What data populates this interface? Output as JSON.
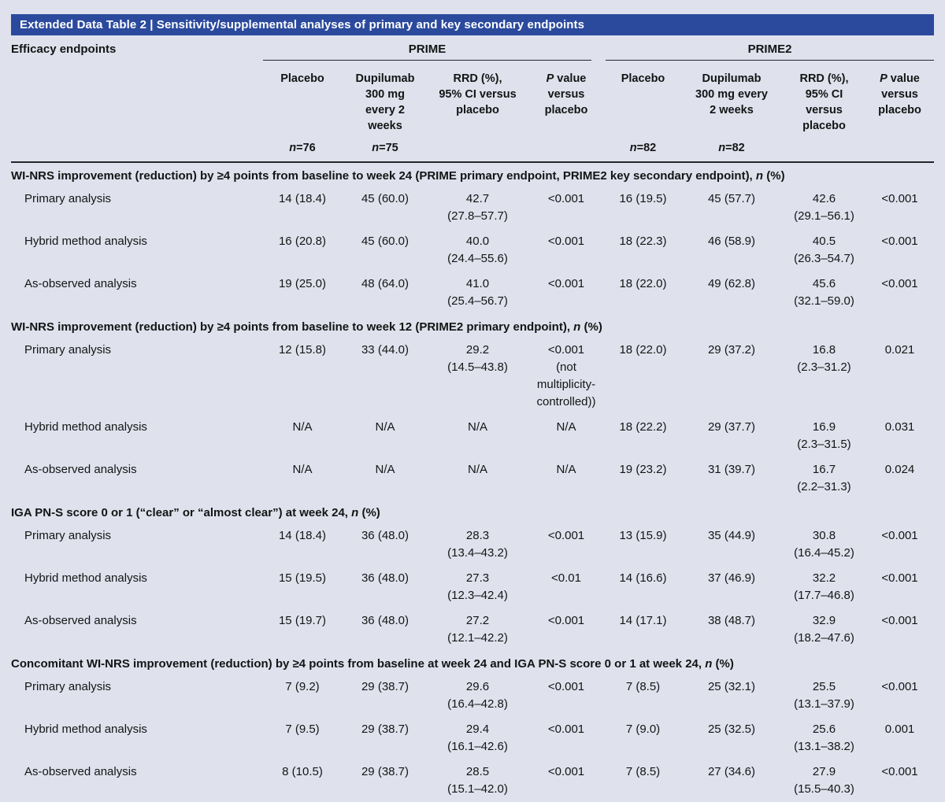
{
  "title": "Extended Data Table 2 | Sensitivity/supplemental analyses of primary and key secondary endpoints",
  "header": {
    "efficacy_label": "Efficacy endpoints",
    "groups": [
      {
        "name": "PRIME",
        "columns": [
          {
            "lines": [
              "Placebo"
            ],
            "n": "n=76"
          },
          {
            "lines": [
              "Dupilumab",
              "300 mg",
              "every 2",
              "weeks"
            ],
            "n": "n=75"
          },
          {
            "lines": [
              "RRD (%),",
              "95% CI versus",
              "placebo"
            ],
            "n": ""
          },
          {
            "lines": [
              "P value",
              "versus",
              "placebo"
            ],
            "n": ""
          }
        ]
      },
      {
        "name": "PRIME2",
        "columns": [
          {
            "lines": [
              "Placebo"
            ],
            "n": "n=82"
          },
          {
            "lines": [
              "Dupilumab",
              "300 mg every",
              "2 weeks"
            ],
            "n": "n=82"
          },
          {
            "lines": [
              "RRD (%),",
              "95% CI",
              "versus",
              "placebo"
            ],
            "n": ""
          },
          {
            "lines": [
              "P value",
              "versus",
              "placebo"
            ],
            "n": ""
          }
        ]
      }
    ]
  },
  "sections": [
    {
      "title": "WI-NRS improvement (reduction) by ≥4 points from baseline to week 24 (PRIME primary endpoint, PRIME2 key secondary endpoint), n (%)",
      "rows": [
        {
          "label": "Primary analysis",
          "cells": [
            "14 (18.4)",
            "45 (60.0)",
            [
              "42.7",
              "(27.8–57.7)"
            ],
            "<0.001",
            "16 (19.5)",
            "45 (57.7)",
            [
              "42.6",
              "(29.1–56.1)"
            ],
            "<0.001"
          ]
        },
        {
          "label": "Hybrid method analysis",
          "cells": [
            "16 (20.8)",
            "45 (60.0)",
            [
              "40.0",
              "(24.4–55.6)"
            ],
            "<0.001",
            "18 (22.3)",
            "46 (58.9)",
            [
              "40.5",
              "(26.3–54.7)"
            ],
            "<0.001"
          ]
        },
        {
          "label": "As-observed analysis",
          "cells": [
            "19 (25.0)",
            "48 (64.0)",
            [
              "41.0",
              "(25.4–56.7)"
            ],
            "<0.001",
            "18 (22.0)",
            "49 (62.8)",
            [
              "45.6",
              "(32.1–59.0)"
            ],
            "<0.001"
          ]
        }
      ]
    },
    {
      "title": "WI-NRS improvement (reduction) by ≥4 points from baseline to week 12 (PRIME2 primary endpoint), n (%)",
      "rows": [
        {
          "label": "Primary analysis",
          "cells": [
            "12 (15.8)",
            "33 (44.0)",
            [
              "29.2",
              "(14.5–43.8)"
            ],
            [
              "<0.001",
              "(not",
              "multiplicity-",
              "controlled))"
            ],
            "18 (22.0)",
            "29 (37.2)",
            [
              "16.8",
              "(2.3–31.2)"
            ],
            "0.021"
          ]
        },
        {
          "label": "Hybrid method analysis",
          "cells": [
            "N/A",
            "N/A",
            "N/A",
            "N/A",
            "18 (22.2)",
            "29 (37.7)",
            [
              "16.9",
              "(2.3–31.5)"
            ],
            "0.031"
          ]
        },
        {
          "label": "As-observed analysis",
          "cells": [
            "N/A",
            "N/A",
            "N/A",
            "N/A",
            "19 (23.2)",
            "31 (39.7)",
            [
              "16.7",
              "(2.2–31.3)"
            ],
            "0.024"
          ]
        }
      ]
    },
    {
      "title": "IGA PN-S score 0 or 1 (“clear” or “almost clear”) at week 24, n (%)",
      "rows": [
        {
          "label": "Primary analysis",
          "cells": [
            "14 (18.4)",
            "36 (48.0)",
            [
              "28.3",
              "(13.4–43.2)"
            ],
            "<0.001",
            "13 (15.9)",
            "35 (44.9)",
            [
              "30.8",
              "(16.4–45.2)"
            ],
            "<0.001"
          ]
        },
        {
          "label": "Hybrid method analysis",
          "cells": [
            "15 (19.5)",
            "36 (48.0)",
            [
              "27.3",
              "(12.3–42.4)"
            ],
            "<0.01",
            "14 (16.6)",
            "37 (46.9)",
            [
              "32.2",
              "(17.7–46.8)"
            ],
            "<0.001"
          ]
        },
        {
          "label": "As-observed analysis",
          "cells": [
            "15 (19.7)",
            "36 (48.0)",
            [
              "27.2",
              "(12.1–42.2)"
            ],
            "<0.001",
            "14 (17.1)",
            "38 (48.7)",
            [
              "32.9",
              "(18.2–47.6)"
            ],
            "<0.001"
          ]
        }
      ]
    },
    {
      "title": "Concomitant WI-NRS improvement (reduction) by ≥4 points from baseline at week 24 and IGA PN-S score 0 or 1 at week 24, n (%)",
      "rows": [
        {
          "label": "Primary analysis",
          "cells": [
            "7 (9.2)",
            "29 (38.7)",
            [
              "29.6",
              "(16.4–42.8)"
            ],
            "<0.001",
            "7 (8.5)",
            "25 (32.1)",
            [
              "25.5",
              "(13.1–37.9)"
            ],
            "<0.001"
          ]
        },
        {
          "label": "Hybrid method analysis",
          "cells": [
            "7 (9.5)",
            "29 (38.7)",
            [
              "29.4",
              "(16.1–42.6)"
            ],
            "<0.001",
            "7 (9.0)",
            "25 (32.5)",
            [
              "25.6",
              "(13.1–38.2)"
            ],
            "0.001"
          ]
        },
        {
          "label": "As-observed analysis",
          "cells": [
            "8 (10.5)",
            "29 (38.7)",
            [
              "28.5",
              "(15.1–42.0)"
            ],
            "<0.001",
            "7 (8.5)",
            "27 (34.6)",
            [
              "27.9",
              "(15.5–40.3)"
            ],
            "<0.001"
          ]
        }
      ]
    }
  ],
  "colors": {
    "title_bar": "#2b4a9e",
    "page_bg": "#dfe2ed",
    "text": "#141414",
    "rule": "#26262b"
  }
}
